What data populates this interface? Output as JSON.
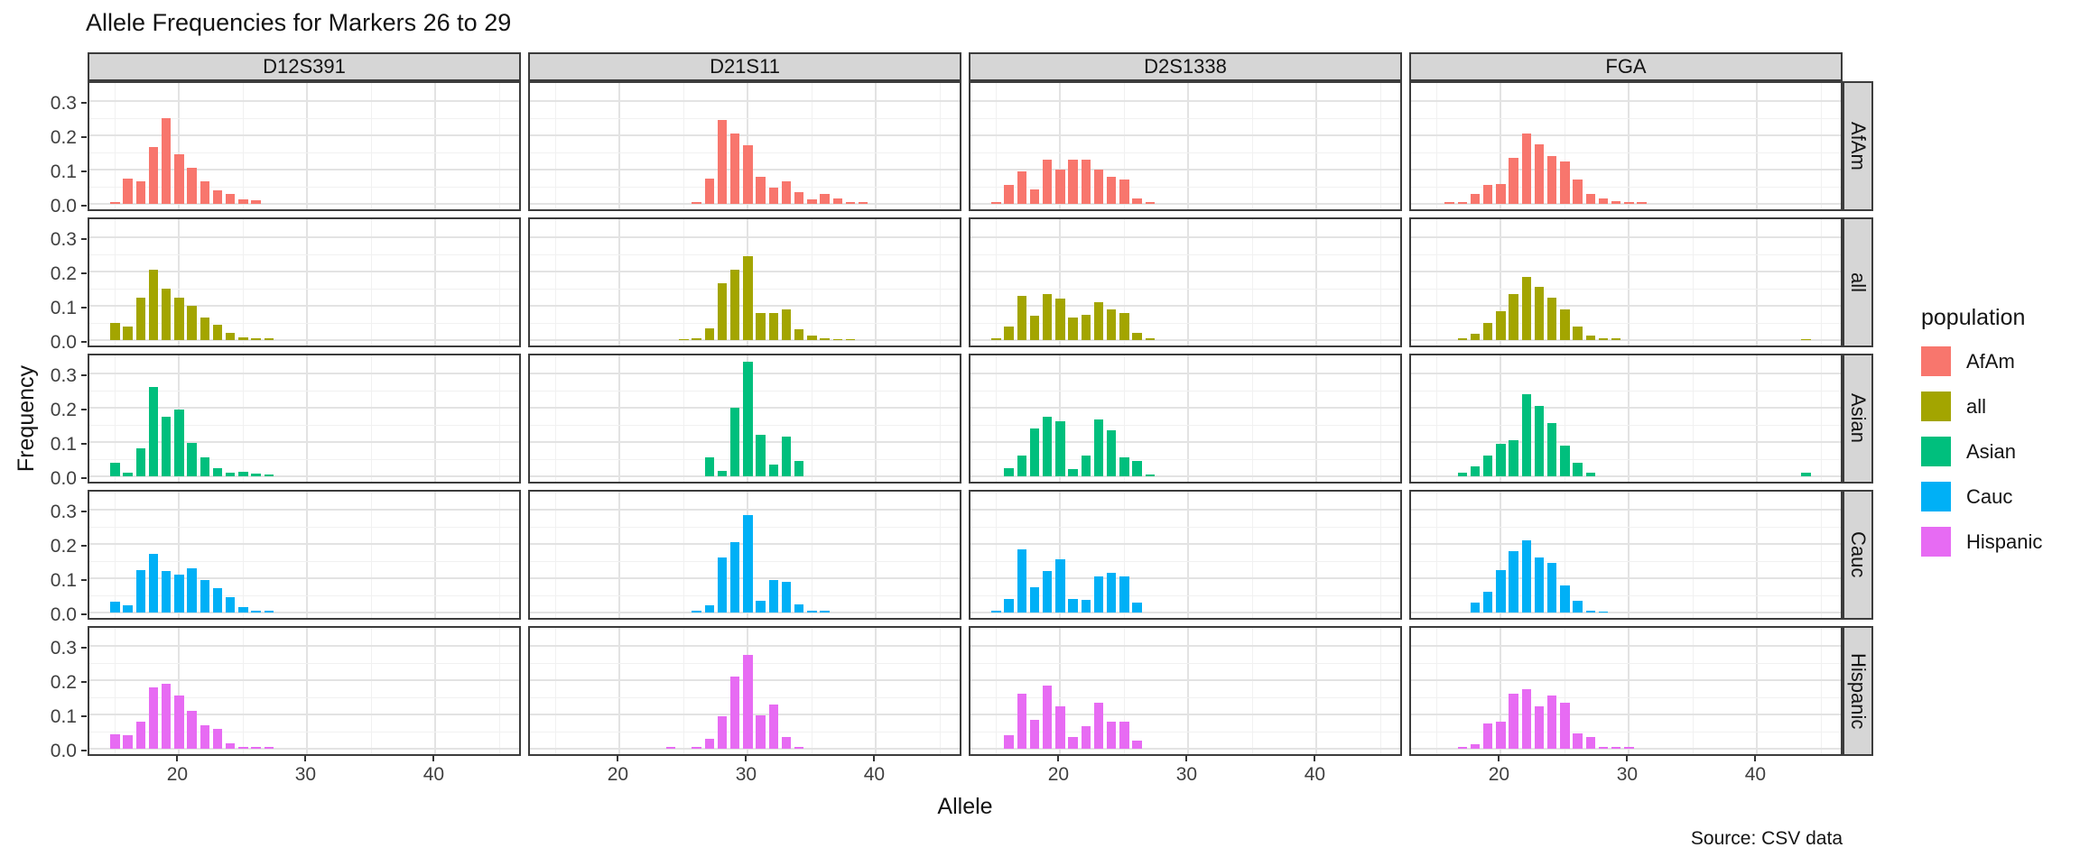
{
  "title": "Allele Frequencies for Markers 26 to 29",
  "caption": "Source: CSV data",
  "x_axis_title": "Allele",
  "y_axis_title": "Frequency",
  "legend": {
    "title": "population",
    "entries": [
      {
        "label": "AfAm",
        "color": "#F8766D"
      },
      {
        "label": "all",
        "color": "#A3A500"
      },
      {
        "label": "Asian",
        "color": "#00BF7D"
      },
      {
        "label": "Cauc",
        "color": "#00B0F6"
      },
      {
        "label": "Hispanic",
        "color": "#E76BF3"
      }
    ]
  },
  "chart_data": {
    "type": "bar",
    "title": "Allele Frequencies for Markers 26 to 29",
    "xlabel": "Allele",
    "ylabel": "Frequency",
    "facet_columns": [
      "D12S391",
      "D21S11",
      "D2S1338",
      "FGA"
    ],
    "facet_rows": [
      "AfAm",
      "all",
      "Asian",
      "Cauc",
      "Hispanic"
    ],
    "x_ticks": [
      "20",
      "30",
      "40"
    ],
    "y_ticks": [
      "0.0",
      "0.1",
      "0.2",
      "0.3"
    ],
    "x_minor_ticks": [
      15,
      25,
      35,
      45
    ],
    "y_minor_ticks": [
      0.05,
      0.15,
      0.25
    ],
    "x_range": [
      13,
      46.8
    ],
    "y_range": [
      0,
      0.345
    ],
    "grid": "major+minor",
    "legend_position": "right",
    "series_colors": {
      "AfAm": "#F8766D",
      "all": "#A3A500",
      "Asian": "#00BF7D",
      "Cauc": "#00B0F6",
      "Hispanic": "#E76BF3"
    },
    "panels": [
      {
        "population": "AfAm",
        "marker": "D12S391",
        "points": [
          [
            15,
            0.005
          ],
          [
            16,
            0.075
          ],
          [
            17,
            0.065
          ],
          [
            18,
            0.165
          ],
          [
            19,
            0.25
          ],
          [
            20,
            0.145
          ],
          [
            21,
            0.105
          ],
          [
            22,
            0.065
          ],
          [
            23,
            0.04
          ],
          [
            24,
            0.03
          ],
          [
            25,
            0.012
          ],
          [
            26,
            0.01
          ]
        ]
      },
      {
        "population": "AfAm",
        "marker": "D21S11",
        "points": [
          [
            26,
            0.004
          ],
          [
            27,
            0.075
          ],
          [
            28,
            0.245
          ],
          [
            29,
            0.205
          ],
          [
            30,
            0.17
          ],
          [
            31,
            0.08
          ],
          [
            32,
            0.048
          ],
          [
            33,
            0.065
          ],
          [
            34,
            0.035
          ],
          [
            35,
            0.012
          ],
          [
            36,
            0.03
          ],
          [
            37,
            0.015
          ],
          [
            38,
            0.004
          ],
          [
            39,
            0.004
          ]
        ]
      },
      {
        "population": "AfAm",
        "marker": "D2S1338",
        "points": [
          [
            15,
            0.005
          ],
          [
            16,
            0.055
          ],
          [
            17,
            0.095
          ],
          [
            18,
            0.042
          ],
          [
            19,
            0.13
          ],
          [
            20,
            0.1
          ],
          [
            21,
            0.128
          ],
          [
            22,
            0.128
          ],
          [
            23,
            0.1
          ],
          [
            24,
            0.078
          ],
          [
            25,
            0.072
          ],
          [
            26,
            0.015
          ],
          [
            27,
            0.006
          ]
        ]
      },
      {
        "population": "AfAm",
        "marker": "FGA",
        "points": [
          [
            16,
            0.004
          ],
          [
            17,
            0.004
          ],
          [
            18,
            0.028
          ],
          [
            19,
            0.055
          ],
          [
            20,
            0.058
          ],
          [
            21,
            0.135
          ],
          [
            22,
            0.205
          ],
          [
            23,
            0.175
          ],
          [
            24,
            0.14
          ],
          [
            25,
            0.125
          ],
          [
            26,
            0.072
          ],
          [
            27,
            0.028
          ],
          [
            28,
            0.016
          ],
          [
            29,
            0.008
          ],
          [
            30,
            0.004
          ],
          [
            31,
            0.004
          ]
        ]
      },
      {
        "population": "all",
        "marker": "D12S391",
        "points": [
          [
            15,
            0.05
          ],
          [
            16,
            0.04
          ],
          [
            17,
            0.125
          ],
          [
            18,
            0.205
          ],
          [
            19,
            0.15
          ],
          [
            20,
            0.125
          ],
          [
            21,
            0.1
          ],
          [
            22,
            0.065
          ],
          [
            23,
            0.045
          ],
          [
            24,
            0.022
          ],
          [
            25,
            0.008
          ],
          [
            26,
            0.004
          ],
          [
            27,
            0.004
          ]
        ]
      },
      {
        "population": "all",
        "marker": "D21S11",
        "points": [
          [
            25,
            0.003
          ],
          [
            26,
            0.004
          ],
          [
            27,
            0.035
          ],
          [
            28,
            0.165
          ],
          [
            29,
            0.205
          ],
          [
            30,
            0.245
          ],
          [
            31,
            0.08
          ],
          [
            32,
            0.078
          ],
          [
            33,
            0.09
          ],
          [
            34,
            0.032
          ],
          [
            35,
            0.012
          ],
          [
            36,
            0.005
          ],
          [
            37,
            0.003
          ],
          [
            38,
            0.003
          ]
        ]
      },
      {
        "population": "all",
        "marker": "D2S1338",
        "points": [
          [
            15,
            0.004
          ],
          [
            16,
            0.04
          ],
          [
            17,
            0.13
          ],
          [
            18,
            0.07
          ],
          [
            19,
            0.135
          ],
          [
            20,
            0.12
          ],
          [
            21,
            0.065
          ],
          [
            22,
            0.075
          ],
          [
            23,
            0.11
          ],
          [
            24,
            0.09
          ],
          [
            25,
            0.08
          ],
          [
            26,
            0.02
          ],
          [
            27,
            0.005
          ]
        ]
      },
      {
        "population": "all",
        "marker": "FGA",
        "points": [
          [
            17,
            0.004
          ],
          [
            18,
            0.018
          ],
          [
            19,
            0.05
          ],
          [
            20,
            0.085
          ],
          [
            21,
            0.135
          ],
          [
            22,
            0.185
          ],
          [
            23,
            0.155
          ],
          [
            24,
            0.125
          ],
          [
            25,
            0.09
          ],
          [
            26,
            0.04
          ],
          [
            27,
            0.012
          ],
          [
            28,
            0.006
          ],
          [
            29,
            0.004
          ],
          [
            43.8,
            0.003
          ]
        ]
      },
      {
        "population": "Asian",
        "marker": "D12S391",
        "points": [
          [
            15,
            0.04
          ],
          [
            16,
            0.01
          ],
          [
            17,
            0.082
          ],
          [
            18,
            0.26
          ],
          [
            19,
            0.175
          ],
          [
            20,
            0.195
          ],
          [
            21,
            0.098
          ],
          [
            22,
            0.055
          ],
          [
            23,
            0.025
          ],
          [
            24,
            0.01
          ],
          [
            25,
            0.012
          ],
          [
            26,
            0.008
          ],
          [
            27,
            0.004
          ]
        ]
      },
      {
        "population": "Asian",
        "marker": "D21S11",
        "points": [
          [
            27,
            0.055
          ],
          [
            28,
            0.015
          ],
          [
            29,
            0.2
          ],
          [
            30,
            0.335
          ],
          [
            31,
            0.12
          ],
          [
            32,
            0.035
          ],
          [
            33,
            0.115
          ],
          [
            34,
            0.045
          ]
        ]
      },
      {
        "population": "Asian",
        "marker": "D2S1338",
        "points": [
          [
            16,
            0.025
          ],
          [
            17,
            0.06
          ],
          [
            18,
            0.14
          ],
          [
            19,
            0.175
          ],
          [
            20,
            0.16
          ],
          [
            21,
            0.02
          ],
          [
            22,
            0.06
          ],
          [
            23,
            0.165
          ],
          [
            24,
            0.135
          ],
          [
            25,
            0.055
          ],
          [
            26,
            0.045
          ],
          [
            27,
            0.006
          ]
        ]
      },
      {
        "population": "Asian",
        "marker": "FGA",
        "points": [
          [
            17,
            0.01
          ],
          [
            18,
            0.03
          ],
          [
            19,
            0.06
          ],
          [
            20,
            0.095
          ],
          [
            21,
            0.105
          ],
          [
            22,
            0.24
          ],
          [
            23,
            0.205
          ],
          [
            24,
            0.155
          ],
          [
            25,
            0.09
          ],
          [
            26,
            0.04
          ],
          [
            27,
            0.01
          ],
          [
            43.8,
            0.01
          ]
        ]
      },
      {
        "population": "Cauc",
        "marker": "D12S391",
        "points": [
          [
            15,
            0.032
          ],
          [
            16,
            0.022
          ],
          [
            17,
            0.125
          ],
          [
            18,
            0.17
          ],
          [
            19,
            0.122
          ],
          [
            20,
            0.11
          ],
          [
            21,
            0.13
          ],
          [
            22,
            0.095
          ],
          [
            23,
            0.07
          ],
          [
            24,
            0.045
          ],
          [
            25,
            0.015
          ],
          [
            26,
            0.004
          ],
          [
            27,
            0.004
          ]
        ]
      },
      {
        "population": "Cauc",
        "marker": "D21S11",
        "points": [
          [
            26,
            0.004
          ],
          [
            27,
            0.022
          ],
          [
            28,
            0.16
          ],
          [
            29,
            0.205
          ],
          [
            30,
            0.285
          ],
          [
            31,
            0.035
          ],
          [
            32,
            0.095
          ],
          [
            33,
            0.09
          ],
          [
            34,
            0.025
          ],
          [
            35,
            0.005
          ],
          [
            36,
            0.004
          ]
        ]
      },
      {
        "population": "Cauc",
        "marker": "D2S1338",
        "points": [
          [
            15,
            0.004
          ],
          [
            16,
            0.04
          ],
          [
            17,
            0.185
          ],
          [
            18,
            0.075
          ],
          [
            19,
            0.12
          ],
          [
            20,
            0.155
          ],
          [
            21,
            0.04
          ],
          [
            22,
            0.038
          ],
          [
            23,
            0.105
          ],
          [
            24,
            0.115
          ],
          [
            25,
            0.105
          ],
          [
            26,
            0.03
          ]
        ]
      },
      {
        "population": "Cauc",
        "marker": "FGA",
        "points": [
          [
            18,
            0.03
          ],
          [
            19,
            0.06
          ],
          [
            20,
            0.125
          ],
          [
            21,
            0.18
          ],
          [
            22,
            0.21
          ],
          [
            23,
            0.16
          ],
          [
            24,
            0.145
          ],
          [
            25,
            0.08
          ],
          [
            26,
            0.035
          ],
          [
            27,
            0.006
          ],
          [
            28,
            0.003
          ]
        ]
      },
      {
        "population": "Hispanic",
        "marker": "D12S391",
        "points": [
          [
            15,
            0.043
          ],
          [
            16,
            0.04
          ],
          [
            17,
            0.078
          ],
          [
            18,
            0.18
          ],
          [
            19,
            0.19
          ],
          [
            20,
            0.155
          ],
          [
            21,
            0.11
          ],
          [
            22,
            0.068
          ],
          [
            23,
            0.058
          ],
          [
            24,
            0.015
          ],
          [
            25,
            0.006
          ],
          [
            26,
            0.006
          ],
          [
            27,
            0.006
          ]
        ]
      },
      {
        "population": "Hispanic",
        "marker": "D21S11",
        "points": [
          [
            24,
            0.004
          ],
          [
            26,
            0.004
          ],
          [
            27,
            0.028
          ],
          [
            28,
            0.095
          ],
          [
            29,
            0.21
          ],
          [
            30,
            0.275
          ],
          [
            31,
            0.097
          ],
          [
            32,
            0.13
          ],
          [
            33,
            0.035
          ],
          [
            34,
            0.004
          ]
        ]
      },
      {
        "population": "Hispanic",
        "marker": "D2S1338",
        "points": [
          [
            16,
            0.04
          ],
          [
            17,
            0.16
          ],
          [
            18,
            0.085
          ],
          [
            19,
            0.185
          ],
          [
            20,
            0.125
          ],
          [
            21,
            0.035
          ],
          [
            22,
            0.065
          ],
          [
            23,
            0.135
          ],
          [
            24,
            0.08
          ],
          [
            25,
            0.08
          ],
          [
            26,
            0.025
          ]
        ]
      },
      {
        "population": "Hispanic",
        "marker": "FGA",
        "points": [
          [
            17,
            0.004
          ],
          [
            18,
            0.012
          ],
          [
            19,
            0.075
          ],
          [
            20,
            0.08
          ],
          [
            21,
            0.16
          ],
          [
            22,
            0.175
          ],
          [
            23,
            0.125
          ],
          [
            24,
            0.155
          ],
          [
            25,
            0.135
          ],
          [
            26,
            0.045
          ],
          [
            27,
            0.035
          ],
          [
            28,
            0.004
          ],
          [
            29,
            0.004
          ],
          [
            30,
            0.004
          ]
        ]
      }
    ]
  }
}
